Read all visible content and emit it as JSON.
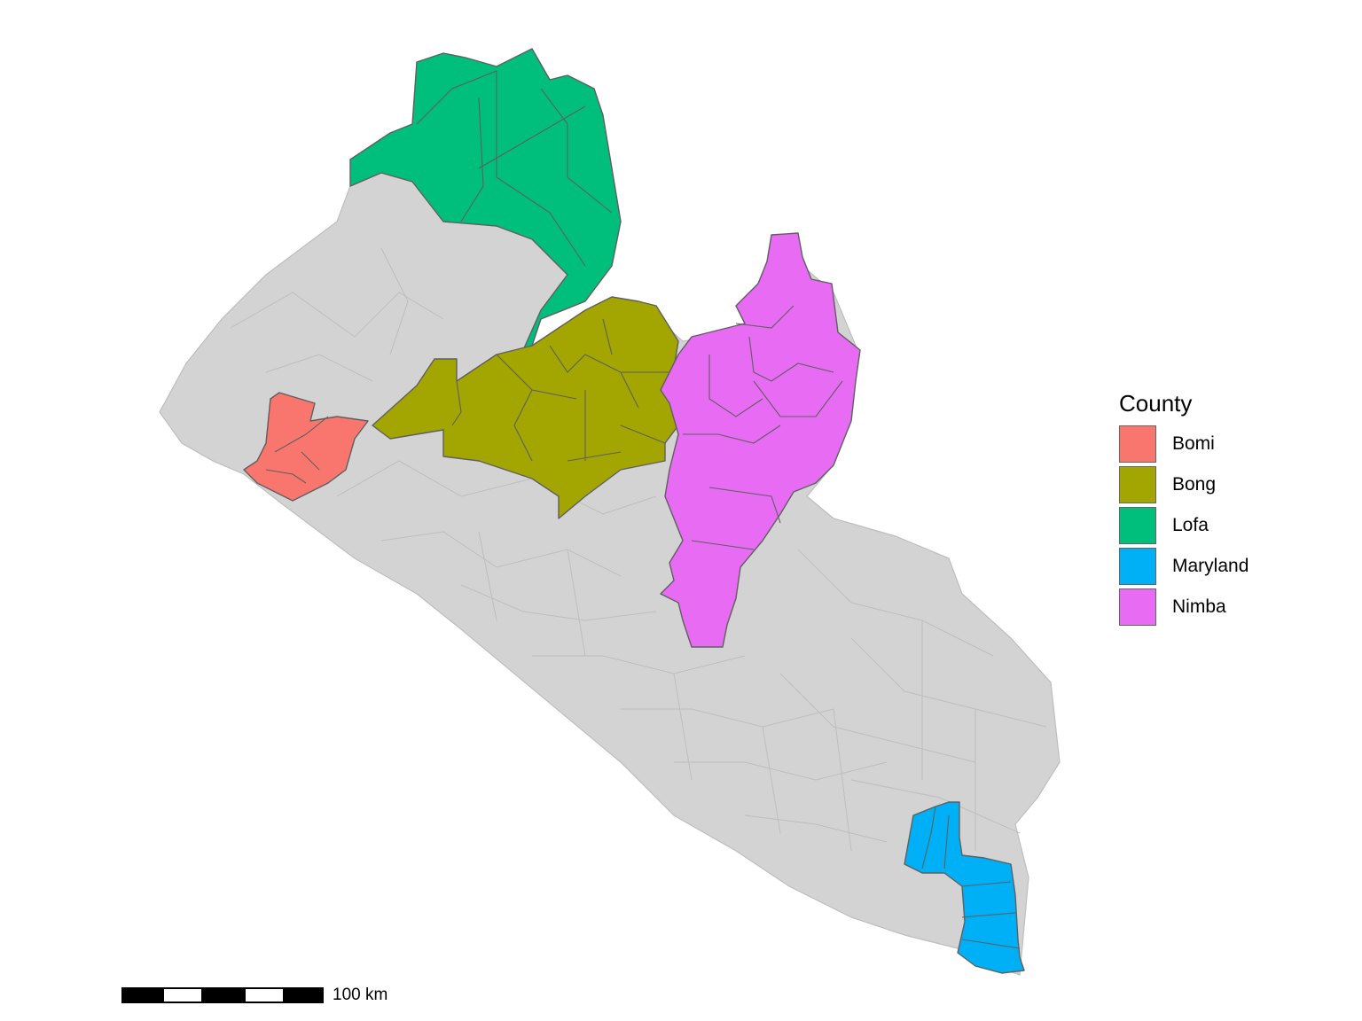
{
  "legend": {
    "title": "County",
    "items": [
      {
        "label": "Bomi",
        "color": "#F8766D"
      },
      {
        "label": "Bong",
        "color": "#A3A500"
      },
      {
        "label": "Lofa",
        "color": "#00BF7D"
      },
      {
        "label": "Maryland",
        "color": "#00B0F6"
      },
      {
        "label": "Nimba",
        "color": "#E76BF3"
      }
    ]
  },
  "map": {
    "base_fill": "#D3D3D3",
    "base_stroke": "#BEBEBE",
    "highlight_stroke": "#5F5F5F",
    "highlighted_counties": [
      "Bomi",
      "Bong",
      "Lofa",
      "Maryland",
      "Nimba"
    ]
  },
  "scale_bar": {
    "label": "100 km"
  }
}
